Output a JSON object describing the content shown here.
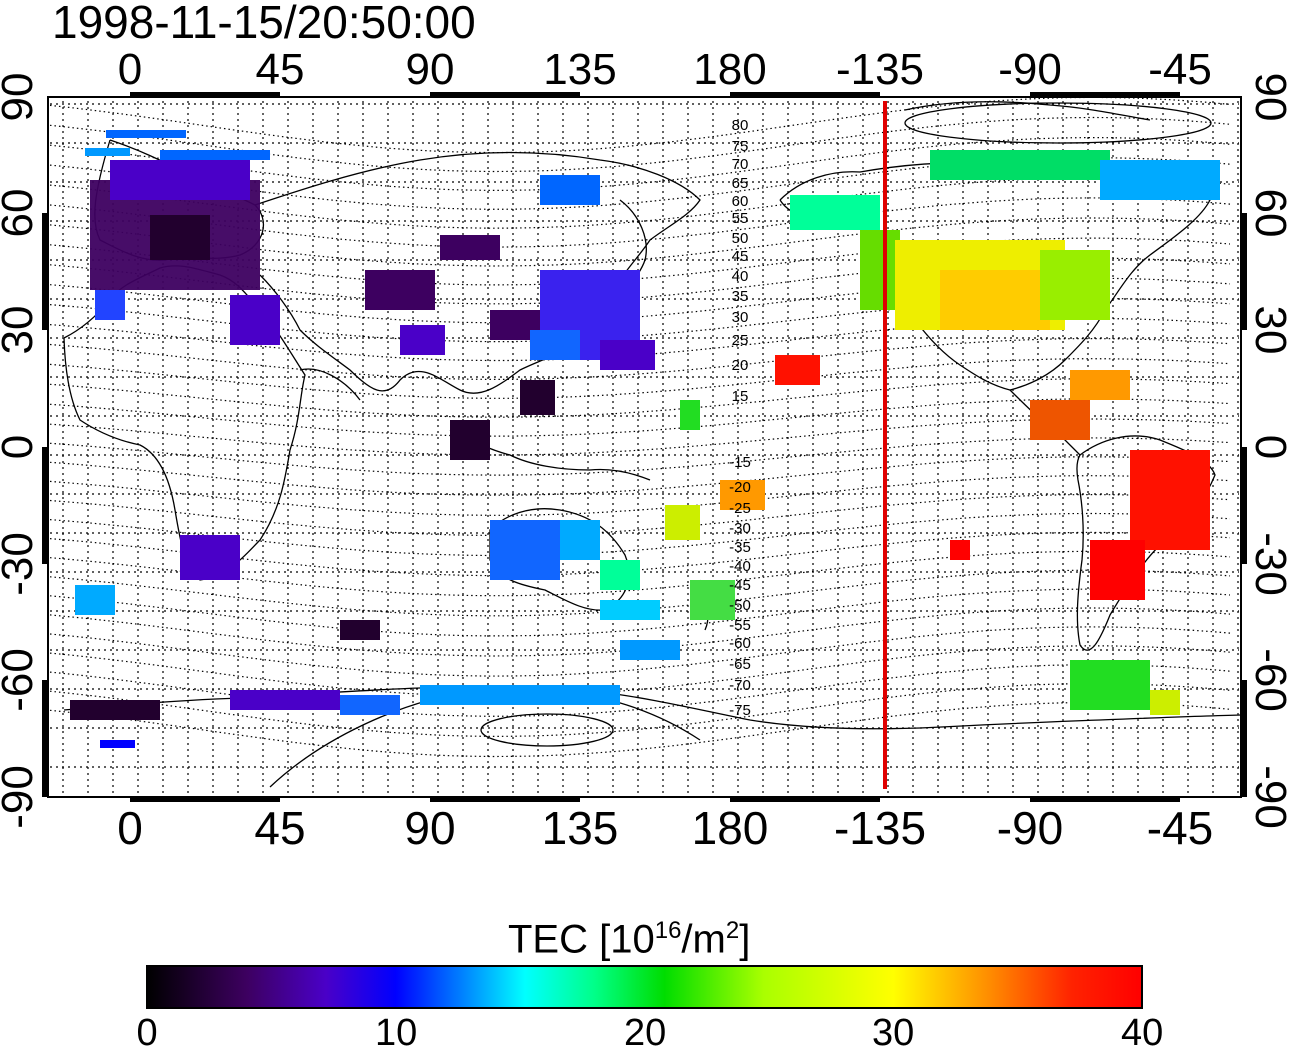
{
  "timestamp": "1998-11-15/20:50:00",
  "map": {
    "top_lon_labels": [
      "0",
      "45",
      "90",
      "135",
      "180",
      "-135",
      "-90",
      "-45"
    ],
    "bottom_lon_labels": [
      "0",
      "45",
      "90",
      "135",
      "180",
      "-135",
      "-90",
      "-45"
    ],
    "lat_labels": [
      "90",
      "60",
      "30",
      "0",
      "-30",
      "-60",
      "-90"
    ],
    "contour_labels": [
      "80",
      "75",
      "70",
      "65",
      "60",
      "55",
      "50",
      "45",
      "40",
      "35",
      "30",
      "25",
      "20",
      "15",
      "-15",
      "-20",
      "-25",
      "-30",
      "-35",
      "-40",
      "-45",
      "-50",
      "-55",
      "-60",
      "-65",
      "-70",
      "-75"
    ],
    "terminator_color": "#e00000",
    "terminator_longitude": -135
  },
  "colorbar": {
    "title_main": "TEC  [10",
    "title_exp1": "16",
    "title_mid": "/m",
    "title_exp2": "2",
    "title_end": "]",
    "tick_labels": [
      "0",
      "10",
      "20",
      "30",
      "40"
    ],
    "range": [
      0,
      40
    ],
    "colormap": [
      "#000000",
      "#3d0060",
      "#4a00c8",
      "#0000ff",
      "#00aaff",
      "#00ffff",
      "#00ff66",
      "#00ee00",
      "#aaff00",
      "#ffff00",
      "#ff9900",
      "#ff3300",
      "#ff0000"
    ]
  }
}
